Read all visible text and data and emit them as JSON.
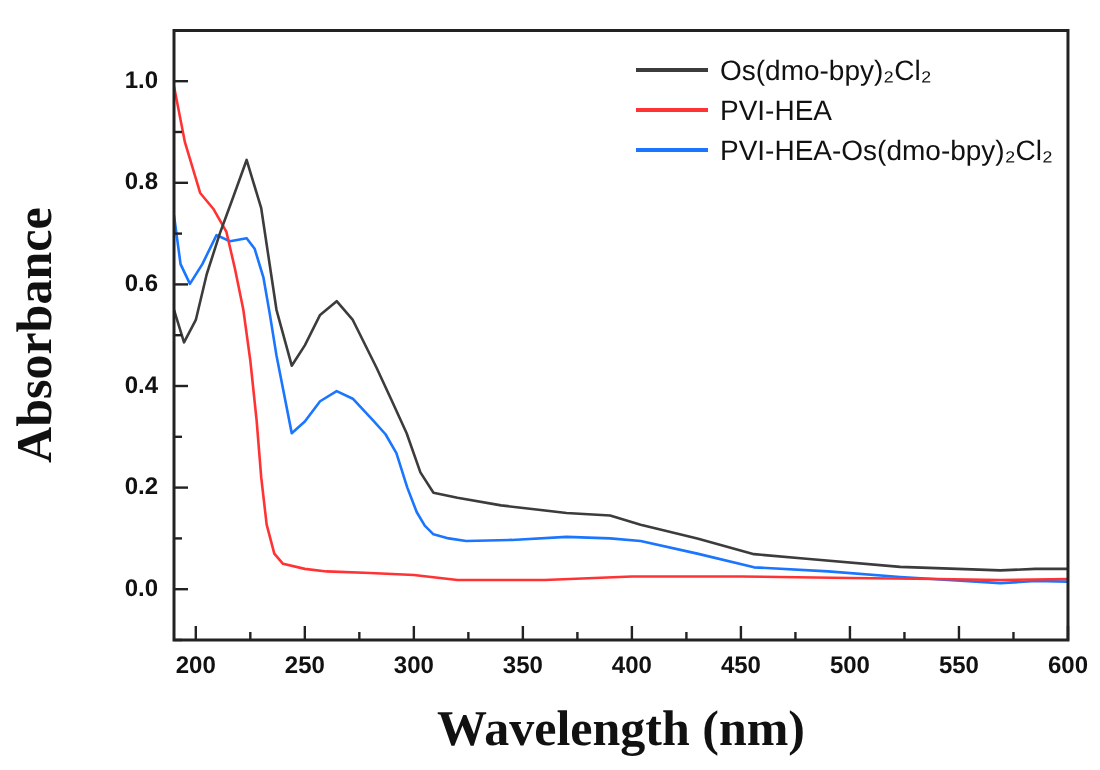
{
  "chart_data": {
    "type": "line",
    "xlabel": "Wavelength (nm)",
    "ylabel": "Absorbance",
    "xlim": [
      190,
      600
    ],
    "ylim": [
      -0.1,
      1.1
    ],
    "xticks": [
      200,
      {
        "value": 225,
        "label": null
      },
      250,
      {
        "value": 275,
        "label": null
      },
      300,
      {
        "value": 325,
        "label": null
      },
      350,
      {
        "value": 375,
        "label": null
      },
      400,
      {
        "value": 425,
        "label": null
      },
      450,
      {
        "value": 475,
        "label": null
      },
      500,
      {
        "value": 525,
        "label": null
      },
      550,
      {
        "value": 575,
        "label": null
      },
      600
    ],
    "yticks": [
      {
        "value": -0.1,
        "label": null
      },
      "0.0",
      {
        "value": 0.1,
        "label": null
      },
      0.2,
      {
        "value": 0.3,
        "label": null
      },
      0.4,
      {
        "value": 0.5,
        "label": null
      },
      0.6,
      {
        "value": 0.7,
        "label": null
      },
      0.8,
      {
        "value": 0.9,
        "label": null
      },
      "1.0"
    ],
    "grid": false,
    "legend": "top right",
    "marker": "none",
    "line_style": "solid",
    "series": [
      {
        "name": "Os(dmo-bpy)₂Cl₂",
        "color": "#3c3c3c",
        "x": [
          190,
          194.6,
          200,
          205,
          211,
          217,
          223.3,
          230,
          237,
          244,
          250,
          257,
          264.6,
          272,
          283,
          290,
          296.7,
          303,
          309,
          320,
          340,
          370,
          390,
          404,
          430,
          456,
          480,
          523,
          569,
          585,
          600
        ],
        "values": [
          0.55,
          0.486,
          0.53,
          0.62,
          0.7,
          0.77,
          0.845,
          0.75,
          0.55,
          0.44,
          0.48,
          0.54,
          0.567,
          0.53,
          0.435,
          0.37,
          0.307,
          0.23,
          0.19,
          0.18,
          0.165,
          0.15,
          0.145,
          0.127,
          0.1,
          0.069,
          0.06,
          0.044,
          0.037,
          0.04,
          0.04
        ]
      },
      {
        "name": "PVI-HEA",
        "color": "#ff3333",
        "x": [
          190,
          195,
          202,
          208,
          214,
          218,
          221.8,
          225,
          227.9,
          230,
          232.5,
          236,
          240,
          250,
          260,
          280,
          300,
          320,
          360,
          400,
          450,
          500,
          540,
          569,
          600
        ],
        "values": [
          0.99,
          0.88,
          0.78,
          0.749,
          0.704,
          0.63,
          0.55,
          0.45,
          0.332,
          0.22,
          0.127,
          0.07,
          0.05,
          0.04,
          0.035,
          0.032,
          0.028,
          0.018,
          0.018,
          0.025,
          0.025,
          0.022,
          0.02,
          0.018,
          0.02
        ]
      },
      {
        "name": "PVI-HEA-Os(dmo-bpy)₂Cl₂",
        "color": "#1a75ff",
        "x": [
          190,
          193,
          197.3,
          203,
          209.5,
          215.7,
          223.3,
          227,
          231,
          234,
          237,
          244,
          250,
          257,
          264.6,
          272,
          281.4,
          287,
          292,
          297,
          301.3,
          305,
          309,
          316,
          324,
          345,
          370,
          390,
          404,
          430,
          456,
          490,
          523,
          569,
          585,
          600
        ],
        "values": [
          0.736,
          0.64,
          0.601,
          0.64,
          0.697,
          0.685,
          0.691,
          0.67,
          0.614,
          0.54,
          0.46,
          0.307,
          0.33,
          0.37,
          0.39,
          0.375,
          0.332,
          0.305,
          0.268,
          0.2,
          0.152,
          0.125,
          0.108,
          0.1,
          0.095,
          0.097,
          0.103,
          0.1,
          0.095,
          0.07,
          0.043,
          0.035,
          0.024,
          0.012,
          0.016,
          0.015
        ]
      }
    ]
  }
}
